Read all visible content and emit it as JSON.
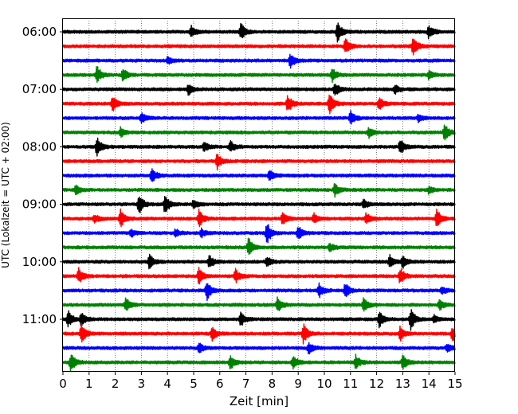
{
  "chart_data": {
    "type": "line",
    "title": "",
    "xlabel": "Zeit  [min]",
    "ylabel": "UTC (Lokalzeit = UTC + 02:00)",
    "xlim": [
      0,
      15
    ],
    "x_ticks": [
      "0",
      "1",
      "2",
      "3",
      "4",
      "5",
      "6",
      "7",
      "8",
      "9",
      "10",
      "11",
      "12",
      "13",
      "14",
      "15"
    ],
    "y_ticks": [
      "06:00",
      "07:00",
      "08:00",
      "09:00",
      "10:00",
      "11:00"
    ],
    "y_tick_rows": [
      0,
      4,
      8,
      12,
      16,
      20
    ],
    "grid": "vertical-dotted",
    "colors": [
      "#000000",
      "#ff0000",
      "#0000ff",
      "#008000"
    ],
    "traces": [
      {
        "start": "06:00",
        "events": [
          [
            4.9,
            0.8
          ],
          [
            6.8,
            1.3
          ],
          [
            10.5,
            1.6
          ],
          [
            14.0,
            1.0
          ]
        ]
      },
      {
        "start": "06:15",
        "events": [
          [
            10.8,
            1.2
          ],
          [
            13.4,
            1.5
          ]
        ]
      },
      {
        "start": "06:30",
        "events": [
          [
            8.7,
            1.0
          ],
          [
            4.0,
            0.5
          ]
        ]
      },
      {
        "start": "06:45",
        "events": [
          [
            1.3,
            1.3
          ],
          [
            2.3,
            1.0
          ],
          [
            10.3,
            0.9
          ],
          [
            14.0,
            0.6
          ]
        ]
      },
      {
        "start": "07:00",
        "events": [
          [
            4.8,
            0.8
          ],
          [
            10.4,
            1.0
          ],
          [
            12.7,
            0.6
          ]
        ]
      },
      {
        "start": "07:15",
        "events": [
          [
            1.9,
            1.1
          ],
          [
            8.6,
            1.3
          ],
          [
            10.2,
            1.7
          ],
          [
            12.1,
            1.0
          ]
        ]
      },
      {
        "start": "07:30",
        "events": [
          [
            3.0,
            0.9
          ],
          [
            11.0,
            1.0
          ],
          [
            13.6,
            0.5
          ]
        ]
      },
      {
        "start": "07:45",
        "events": [
          [
            2.2,
            0.7
          ],
          [
            11.7,
            0.8
          ],
          [
            14.6,
            1.3
          ]
        ]
      },
      {
        "start": "08:00",
        "events": [
          [
            1.3,
            1.3
          ],
          [
            5.4,
            0.8
          ],
          [
            6.4,
            0.9
          ],
          [
            12.9,
            1.2
          ]
        ]
      },
      {
        "start": "08:15",
        "events": [
          [
            5.9,
            1.2
          ]
        ]
      },
      {
        "start": "08:30",
        "events": [
          [
            3.4,
            1.2
          ],
          [
            7.9,
            0.8
          ]
        ]
      },
      {
        "start": "08:45",
        "events": [
          [
            0.5,
            0.7
          ],
          [
            10.4,
            1.0
          ],
          [
            14.0,
            0.5
          ]
        ]
      },
      {
        "start": "09:00",
        "events": [
          [
            2.9,
            1.5
          ],
          [
            3.9,
            1.5
          ],
          [
            5.0,
            0.7
          ],
          [
            11.5,
            0.7
          ]
        ]
      },
      {
        "start": "09:15",
        "events": [
          [
            1.2,
            0.7
          ],
          [
            2.2,
            1.3
          ],
          [
            5.2,
            1.4
          ],
          [
            8.4,
            1.1
          ],
          [
            9.6,
            0.7
          ],
          [
            11.6,
            0.8
          ],
          [
            14.3,
            1.4
          ]
        ]
      },
      {
        "start": "09:30",
        "events": [
          [
            2.6,
            0.6
          ],
          [
            4.3,
            0.6
          ],
          [
            5.3,
            0.6
          ],
          [
            7.8,
            1.6
          ],
          [
            9.0,
            1.0
          ]
        ]
      },
      {
        "start": "09:45",
        "events": [
          [
            7.1,
            1.4
          ],
          [
            10.2,
            0.7
          ]
        ]
      },
      {
        "start": "10:00",
        "events": [
          [
            3.3,
            1.1
          ],
          [
            5.6,
            1.0
          ],
          [
            7.8,
            0.7
          ],
          [
            12.5,
            0.9
          ],
          [
            13.0,
            1.0
          ]
        ]
      },
      {
        "start": "10:15",
        "events": [
          [
            0.6,
            1.1
          ],
          [
            5.2,
            1.2
          ],
          [
            6.6,
            1.0
          ],
          [
            12.9,
            1.2
          ]
        ]
      },
      {
        "start": "10:30",
        "events": [
          [
            5.5,
            1.5
          ],
          [
            9.8,
            1.0
          ],
          [
            10.8,
            1.1
          ],
          [
            14.5,
            0.6
          ]
        ]
      },
      {
        "start": "10:45",
        "events": [
          [
            2.4,
            1.1
          ],
          [
            8.2,
            1.1
          ],
          [
            11.5,
            1.1
          ],
          [
            14.4,
            0.9
          ]
        ]
      },
      {
        "start": "11:00",
        "events": [
          [
            0.2,
            1.2
          ],
          [
            0.7,
            1.0
          ],
          [
            6.8,
            1.0
          ],
          [
            12.1,
            1.2
          ],
          [
            13.3,
            1.6
          ],
          [
            14.2,
            0.6
          ]
        ]
      },
      {
        "start": "11:15",
        "events": [
          [
            0.7,
            1.4
          ],
          [
            5.7,
            1.0
          ],
          [
            9.2,
            1.4
          ],
          [
            12.9,
            1.0
          ],
          [
            14.9,
            1.1
          ]
        ]
      },
      {
        "start": "11:30",
        "events": [
          [
            5.2,
            0.8
          ],
          [
            9.4,
            0.9
          ],
          [
            14.7,
            0.7
          ]
        ]
      },
      {
        "start": "11:45",
        "events": [
          [
            0.3,
            1.3
          ],
          [
            6.4,
            1.0
          ],
          [
            8.8,
            1.2
          ],
          [
            11.2,
            1.0
          ],
          [
            13.0,
            1.3
          ]
        ]
      }
    ]
  }
}
